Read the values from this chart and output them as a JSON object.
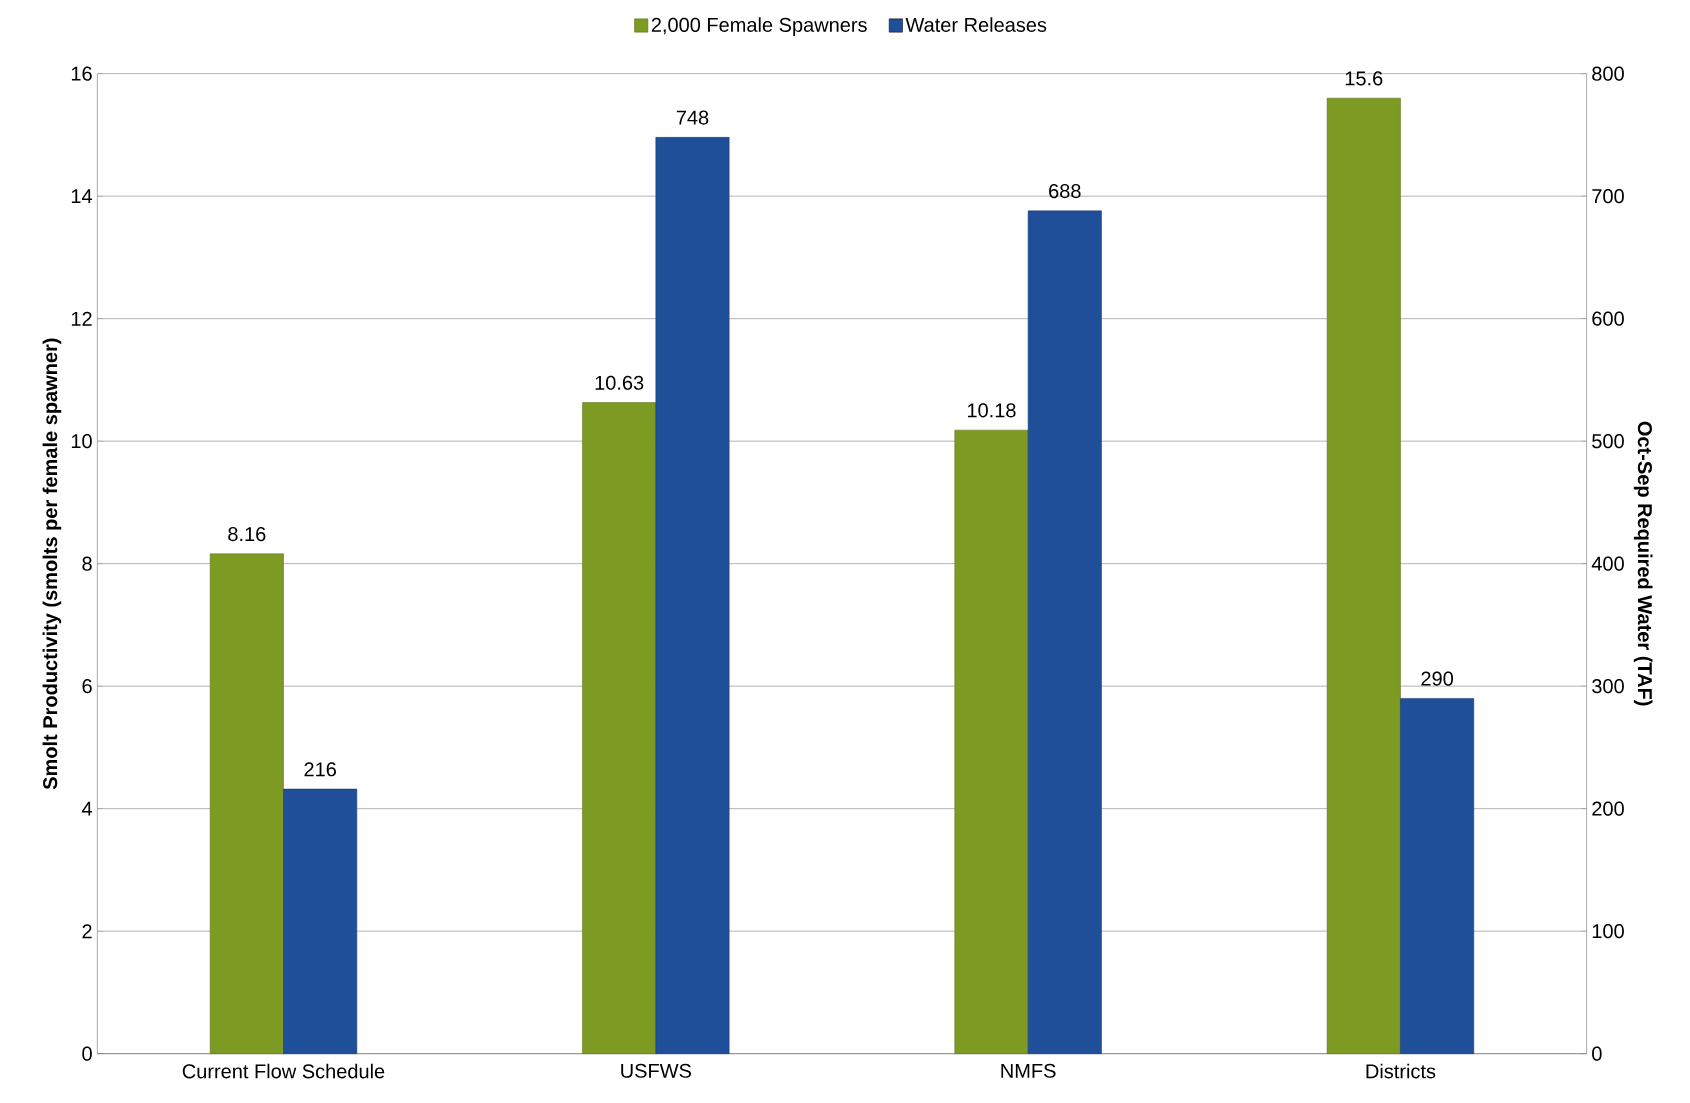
{
  "chart_data": {
    "type": "bar",
    "categories": [
      "Current Flow Schedule",
      "USFWS",
      "NMFS",
      "Districts"
    ],
    "series": [
      {
        "name": "2,000 Female Spawners",
        "color": "#7d9a22",
        "values": [
          8.16,
          10.63,
          10.18,
          15.6
        ]
      },
      {
        "name": "Water Releases",
        "color": "#1f4f99",
        "values": [
          216,
          748,
          688,
          290
        ],
        "axis": "y2"
      }
    ],
    "ylabel": "Smolt Productivity (smolts per female spawner)",
    "y2label": "Oct-Sep Required Water (TAF)",
    "ylim": [
      0,
      16
    ],
    "yticks": [
      0,
      2,
      4,
      6,
      8,
      10,
      12,
      14,
      16
    ],
    "y2lim": [
      0,
      800
    ],
    "y2ticks": [
      0,
      100,
      200,
      300,
      400,
      500,
      600,
      700,
      800
    ],
    "grid": "y",
    "legend": "top",
    "data_labels": true
  }
}
